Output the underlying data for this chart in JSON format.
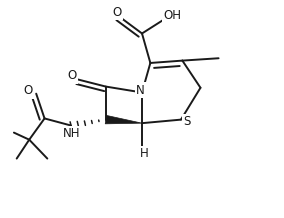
{
  "bg_color": "#ffffff",
  "line_color": "#1a1a1a",
  "line_width": 1.4,
  "font_size": 8.5,
  "figsize": [
    2.84,
    2.18
  ],
  "dpi": 100,
  "xlim": [
    0.0,
    1.0
  ],
  "ylim": [
    0.05,
    0.95
  ]
}
